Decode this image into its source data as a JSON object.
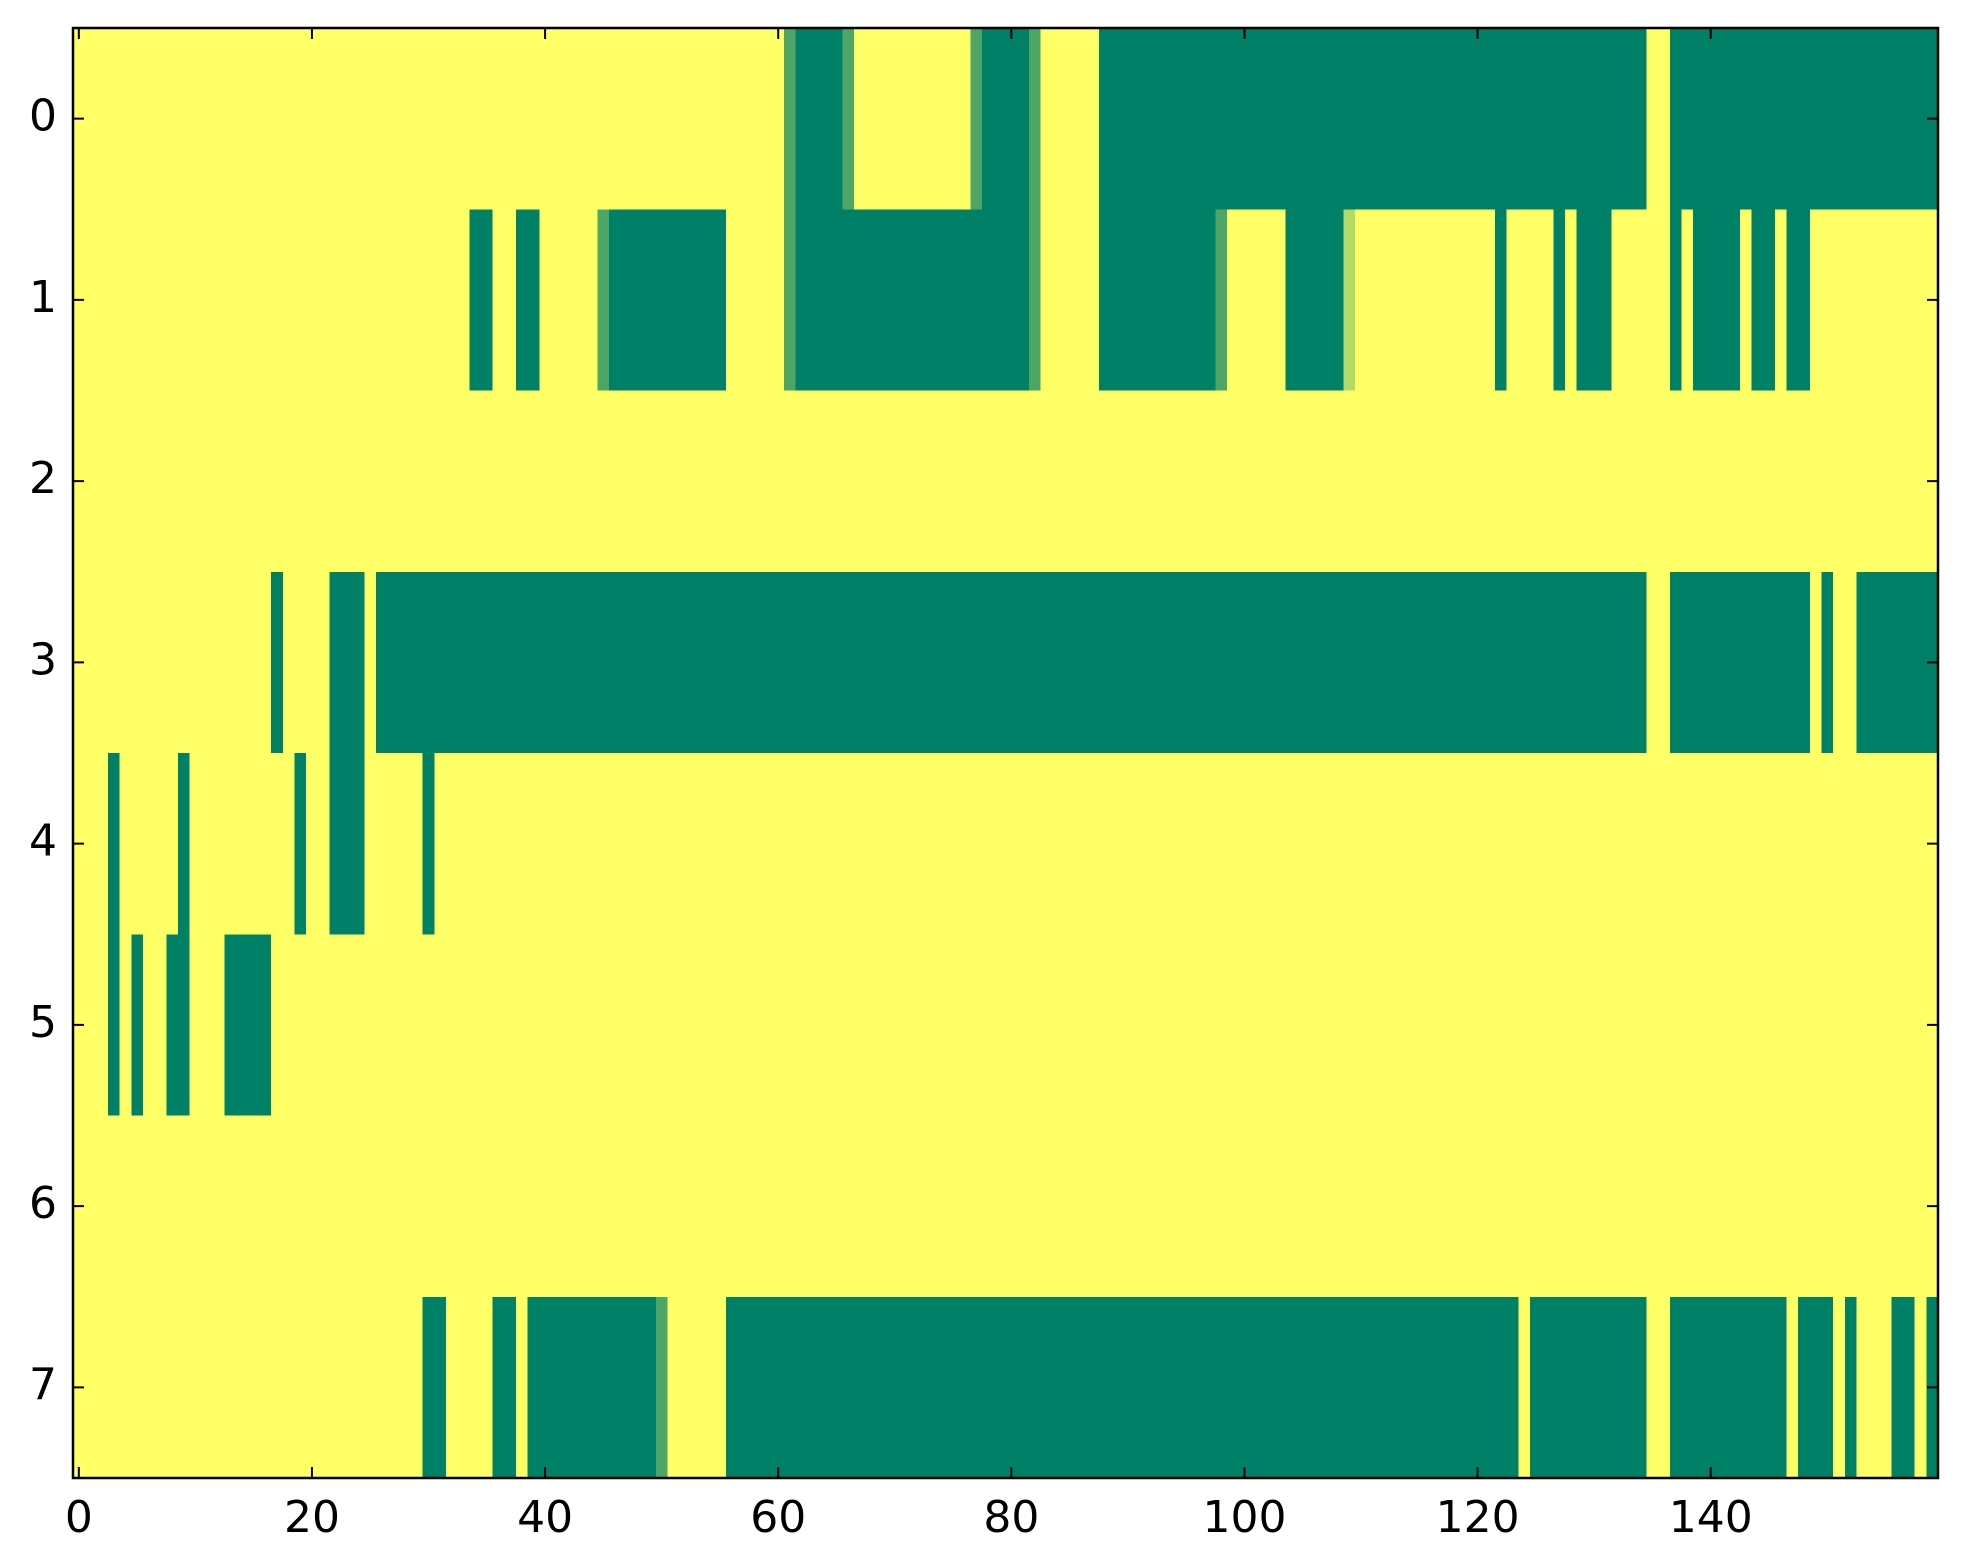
{
  "chart_data": {
    "type": "heatmap",
    "xlim": [
      -0.5,
      159.5
    ],
    "ylim": [
      7.5,
      -0.5
    ],
    "xticks": [
      0,
      20,
      40,
      60,
      80,
      100,
      120,
      140
    ],
    "yticks": [
      0,
      1,
      2,
      3,
      4,
      5,
      6,
      7
    ],
    "colormap": {
      "low": "#ffff66",
      "high": "#008066"
    },
    "z": [
      [
        0,
        0,
        0,
        0,
        0,
        0,
        0,
        0,
        0,
        0,
        0,
        0,
        0,
        0,
        0,
        0,
        0,
        0,
        0,
        0,
        0,
        0,
        0,
        0,
        0,
        0,
        0,
        0,
        0,
        0,
        0,
        0,
        0,
        0,
        0,
        0,
        0,
        0,
        0,
        0,
        0,
        0,
        0,
        0,
        0,
        0,
        0,
        0,
        0,
        0,
        0,
        0,
        0,
        0,
        0,
        0,
        0,
        0,
        0,
        0,
        0,
        0.7,
        1,
        1,
        1,
        1,
        0.7,
        0,
        0,
        0,
        0,
        0,
        0,
        0,
        0,
        0,
        0,
        0.7,
        1,
        1,
        1,
        1,
        0.7,
        0,
        0,
        0,
        0,
        0,
        1,
        1,
        1,
        1,
        1,
        1,
        1,
        1,
        1,
        1,
        1,
        1,
        1,
        1,
        1,
        1,
        1,
        1,
        1,
        1,
        1,
        1,
        1,
        1,
        1,
        1,
        1,
        1,
        1,
        1,
        1,
        1,
        1,
        1,
        1,
        1,
        1,
        1,
        1,
        1,
        1,
        1,
        1,
        1,
        1,
        1,
        1,
        0,
        0,
        1,
        1,
        1,
        1,
        1,
        1,
        1,
        1,
        1,
        1,
        1,
        1,
        1,
        1,
        1,
        1,
        1,
        1,
        1,
        1,
        1,
        1,
        1
      ],
      [
        0,
        0,
        0,
        0,
        0,
        0,
        0,
        0,
        0,
        0,
        0,
        0,
        0,
        0,
        0,
        0,
        0,
        0,
        0,
        0,
        0,
        0,
        0,
        0,
        0,
        0,
        0,
        0,
        0,
        0,
        0,
        0,
        0,
        0,
        1,
        1,
        0,
        0,
        1,
        1,
        0,
        0,
        0,
        0,
        0,
        0.7,
        1,
        1,
        1,
        1,
        1,
        1,
        1,
        1,
        1,
        1,
        0,
        0,
        0,
        0,
        0,
        0.7,
        1,
        1,
        1,
        1,
        1,
        1,
        1,
        1,
        1,
        1,
        1,
        1,
        1,
        1,
        1,
        1,
        1,
        1,
        1,
        1,
        0.7,
        0,
        0,
        0,
        0,
        0,
        1,
        1,
        1,
        1,
        1,
        1,
        1,
        1,
        1,
        1,
        0.7,
        0,
        0,
        0,
        0,
        0,
        1,
        1,
        1,
        1,
        1,
        0.3,
        0,
        0,
        0,
        0,
        0,
        0,
        0,
        0,
        0,
        0,
        0,
        0,
        1,
        0,
        0,
        0,
        0,
        1,
        0,
        1,
        1,
        1,
        0,
        0,
        0,
        0,
        0,
        1,
        0,
        1,
        1,
        1,
        1,
        0,
        1,
        1,
        0,
        1,
        1,
        0,
        0,
        0,
        0,
        0,
        0,
        0,
        0,
        0,
        0,
        0
      ],
      [
        0,
        0,
        0,
        0,
        0,
        0,
        0,
        0,
        0,
        0,
        0,
        0,
        0,
        0,
        0,
        0,
        0,
        0,
        0,
        0,
        0,
        0,
        0,
        0,
        0,
        0,
        0,
        0,
        0,
        0,
        0,
        0,
        0,
        0,
        0,
        0,
        0,
        0,
        0,
        0,
        0,
        0,
        0,
        0,
        0,
        0,
        0,
        0,
        0,
        0,
        0,
        0,
        0,
        0,
        0,
        0,
        0,
        0,
        0,
        0,
        0,
        0,
        0,
        0,
        0,
        0,
        0,
        0,
        0,
        0,
        0,
        0,
        0,
        0,
        0,
        0,
        0,
        0,
        0,
        0,
        0,
        0,
        0,
        0,
        0,
        0,
        0,
        0,
        0,
        0,
        0,
        0,
        0,
        0,
        0,
        0,
        0,
        0,
        0,
        0,
        0,
        0,
        0,
        0,
        0,
        0,
        0,
        0,
        0,
        0,
        0,
        0,
        0,
        0,
        0,
        0,
        0,
        0,
        0,
        0,
        0,
        0,
        0,
        0,
        0,
        0,
        0,
        0,
        0,
        0,
        0,
        0,
        0,
        0,
        0,
        0,
        0,
        0,
        0,
        0,
        0,
        0,
        0,
        0,
        0,
        0,
        0,
        0,
        0,
        0,
        0,
        0,
        0,
        0,
        0,
        0,
        0,
        0,
        0,
        0
      ],
      [
        0,
        0,
        0,
        0,
        0,
        0,
        0,
        0,
        0,
        0,
        0,
        0,
        0,
        0,
        0,
        0,
        0,
        1,
        0,
        0,
        0,
        0,
        1,
        1,
        1,
        0,
        1,
        1,
        1,
        1,
        1,
        1,
        1,
        1,
        1,
        1,
        1,
        1,
        1,
        1,
        1,
        1,
        1,
        1,
        1,
        1,
        1,
        1,
        1,
        1,
        1,
        1,
        1,
        1,
        1,
        1,
        1,
        1,
        1,
        1,
        1,
        1,
        1,
        1,
        1,
        1,
        1,
        1,
        1,
        1,
        1,
        1,
        1,
        1,
        1,
        1,
        1,
        1,
        1,
        1,
        1,
        1,
        1,
        1,
        1,
        1,
        1,
        1,
        1,
        1,
        1,
        1,
        1,
        1,
        1,
        1,
        1,
        1,
        1,
        1,
        1,
        1,
        1,
        1,
        1,
        1,
        1,
        1,
        1,
        1,
        1,
        1,
        1,
        1,
        1,
        1,
        1,
        1,
        1,
        1,
        1,
        1,
        1,
        1,
        1,
        1,
        1,
        1,
        1,
        1,
        1,
        1,
        1,
        1,
        1,
        0,
        0,
        1,
        1,
        1,
        1,
        1,
        1,
        1,
        1,
        1,
        1,
        1,
        1,
        0,
        1,
        0,
        0,
        1,
        1,
        1,
        1,
        1,
        1,
        1
      ],
      [
        0,
        0,
        0,
        1,
        0,
        0,
        0,
        0,
        0,
        1,
        0,
        0,
        0,
        0,
        0,
        0,
        0,
        0,
        0,
        1,
        0,
        0,
        1,
        1,
        1,
        0,
        0,
        0,
        0,
        0,
        1,
        0,
        0,
        0,
        0,
        0,
        0,
        0,
        0,
        0,
        0,
        0,
        0,
        0,
        0,
        0,
        0,
        0,
        0,
        0,
        0,
        0,
        0,
        0,
        0,
        0,
        0,
        0,
        0,
        0,
        0,
        0,
        0,
        0,
        0,
        0,
        0,
        0,
        0,
        0,
        0,
        0,
        0,
        0,
        0,
        0,
        0,
        0,
        0,
        0,
        0,
        0,
        0,
        0,
        0,
        0,
        0,
        0,
        0,
        0,
        0,
        0,
        0,
        0,
        0,
        0,
        0,
        0,
        0,
        0,
        0,
        0,
        0,
        0,
        0,
        0,
        0,
        0,
        0,
        0,
        0,
        0,
        0,
        0,
        0,
        0,
        0,
        0,
        0,
        0,
        0,
        0,
        0,
        0,
        0,
        0,
        0,
        0,
        0,
        0,
        0,
        0,
        0,
        0,
        0,
        0,
        0,
        0,
        0,
        0,
        0,
        0,
        0,
        0,
        0,
        0,
        0,
        0,
        0,
        0,
        0,
        0,
        0,
        0,
        0,
        0,
        0,
        0,
        0,
        0
      ],
      [
        0,
        0,
        0,
        1,
        0,
        1,
        0,
        0,
        1,
        1,
        0,
        0,
        0,
        1,
        1,
        1,
        1,
        0,
        0,
        0,
        0,
        0,
        0,
        0,
        0,
        0,
        0,
        0,
        0,
        0,
        0,
        0,
        0,
        0,
        0,
        0,
        0,
        0,
        0,
        0,
        0,
        0,
        0,
        0,
        0,
        0,
        0,
        0,
        0,
        0,
        0,
        0,
        0,
        0,
        0,
        0,
        0,
        0,
        0,
        0,
        0,
        0,
        0,
        0,
        0,
        0,
        0,
        0,
        0,
        0,
        0,
        0,
        0,
        0,
        0,
        0,
        0,
        0,
        0,
        0,
        0,
        0,
        0,
        0,
        0,
        0,
        0,
        0,
        0,
        0,
        0,
        0,
        0,
        0,
        0,
        0,
        0,
        0,
        0,
        0,
        0,
        0,
        0,
        0,
        0,
        0,
        0,
        0,
        0,
        0,
        0,
        0,
        0,
        0,
        0,
        0,
        0,
        0,
        0,
        0,
        0,
        0,
        0,
        0,
        0,
        0,
        0,
        0,
        0,
        0,
        0,
        0,
        0,
        0,
        0,
        0,
        0,
        0,
        0,
        0,
        0,
        0,
        0,
        0,
        0,
        0,
        0,
        0,
        0,
        0,
        0,
        0,
        0,
        0,
        0,
        0,
        0,
        0,
        0,
        0
      ],
      [
        0,
        0,
        0,
        0,
        0,
        0,
        0,
        0,
        0,
        0,
        0,
        0,
        0,
        0,
        0,
        0,
        0,
        0,
        0,
        0,
        0,
        0,
        0,
        0,
        0,
        0,
        0,
        0,
        0,
        0,
        0,
        0,
        0,
        0,
        0,
        0,
        0,
        0,
        0,
        0,
        0,
        0,
        0,
        0,
        0,
        0,
        0,
        0,
        0,
        0,
        0,
        0,
        0,
        0,
        0,
        0,
        0,
        0,
        0,
        0,
        0,
        0,
        0,
        0,
        0,
        0,
        0,
        0,
        0,
        0,
        0,
        0,
        0,
        0,
        0,
        0,
        0,
        0,
        0,
        0,
        0,
        0,
        0,
        0,
        0,
        0,
        0,
        0,
        0,
        0,
        0,
        0,
        0,
        0,
        0,
        0,
        0,
        0,
        0,
        0,
        0,
        0,
        0,
        0,
        0,
        0,
        0,
        0,
        0,
        0,
        0,
        0,
        0,
        0,
        0,
        0,
        0,
        0,
        0,
        0,
        0,
        0,
        0,
        0,
        0,
        0,
        0,
        0,
        0,
        0,
        0,
        0,
        0,
        0,
        0,
        0,
        0,
        0,
        0,
        0,
        0,
        0,
        0,
        0,
        0,
        0,
        0,
        0,
        0,
        0,
        0,
        0,
        0,
        0,
        0,
        0,
        0,
        0,
        0,
        0
      ],
      [
        0,
        0,
        0,
        0,
        0,
        0,
        0,
        0,
        0,
        0,
        0,
        0,
        0,
        0,
        0,
        0,
        0,
        0,
        0,
        0,
        0,
        0,
        0,
        0,
        0,
        0,
        0,
        0,
        0,
        0,
        1,
        1,
        0,
        0,
        0,
        0,
        1,
        1,
        0,
        1,
        1,
        1,
        1,
        1,
        1,
        1,
        1,
        1,
        1,
        1,
        0.7,
        0,
        0,
        0,
        0,
        0,
        1,
        1,
        1,
        1,
        1,
        1,
        1,
        1,
        1,
        1,
        1,
        1,
        1,
        1,
        1,
        1,
        1,
        1,
        1,
        1,
        1,
        1,
        1,
        1,
        1,
        1,
        1,
        1,
        1,
        1,
        1,
        1,
        1,
        1,
        1,
        1,
        1,
        1,
        1,
        1,
        1,
        1,
        1,
        1,
        1,
        1,
        1,
        1,
        1,
        1,
        1,
        1,
        1,
        1,
        1,
        1,
        1,
        1,
        1,
        1,
        1,
        1,
        1,
        1,
        1,
        1,
        1,
        1,
        0,
        1,
        1,
        1,
        1,
        1,
        1,
        1,
        1,
        1,
        1,
        0,
        0,
        1,
        1,
        1,
        1,
        1,
        1,
        1,
        1,
        1,
        1,
        0,
        1,
        1,
        1,
        0,
        1,
        0,
        0,
        0,
        1,
        1,
        0,
        1
      ]
    ]
  }
}
